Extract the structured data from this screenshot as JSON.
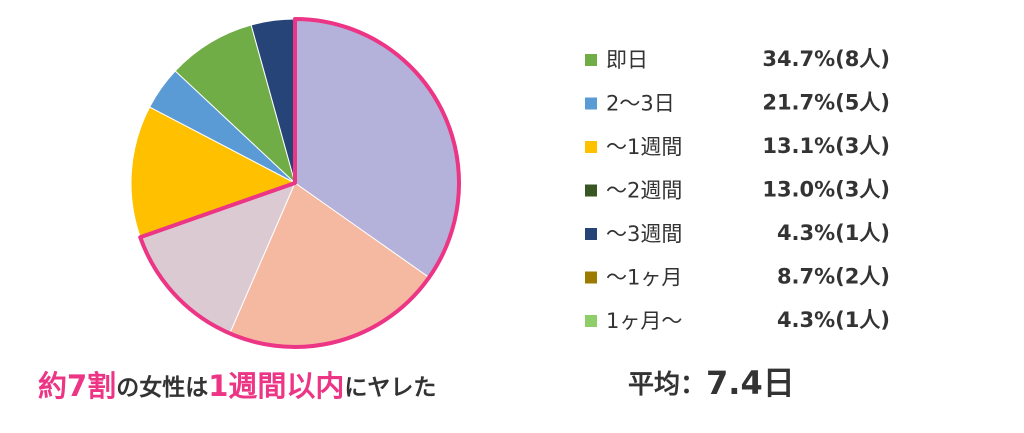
{
  "chart_data": {
    "type": "pie",
    "categories": [
      "即日",
      "2〜3日",
      "〜1週間",
      "〜2週間",
      "〜3週間",
      "〜1ヶ月",
      "1ヶ月〜"
    ],
    "values": [
      34.7,
      21.7,
      13.1,
      13.0,
      4.3,
      8.7,
      4.3
    ],
    "value_labels": [
      "34.7%(8人)",
      "21.7%(5人)",
      "13.1%(3人)",
      "13.0%(3人)",
      "4.3%(1人)",
      "8.7%(2人)",
      "4.3%(1人)"
    ],
    "colors": [
      "#b4b2da",
      "#f5b8a0",
      "#dccad3",
      "#ffc000",
      "#5b9bd5",
      "#70ad47",
      "#264478"
    ],
    "legend_colors": [
      "#70ad47",
      "#5b9bd5",
      "#ffc000",
      "#375623",
      "#264478",
      "#9c7a00",
      "#8fcf6a"
    ],
    "highlight": {
      "color": "#ec3585",
      "slices": [
        0,
        1,
        2
      ]
    },
    "annotation": [
      {
        "text": "約7割",
        "color": "#ec3585"
      },
      {
        "text": "の女性は",
        "color": "#333333"
      },
      {
        "text": "1週間以内",
        "color": "#ec3585"
      },
      {
        "text": "にヤレた",
        "color": "#333333"
      }
    ],
    "average": {
      "label": "平均：",
      "value": "7.4日"
    }
  }
}
